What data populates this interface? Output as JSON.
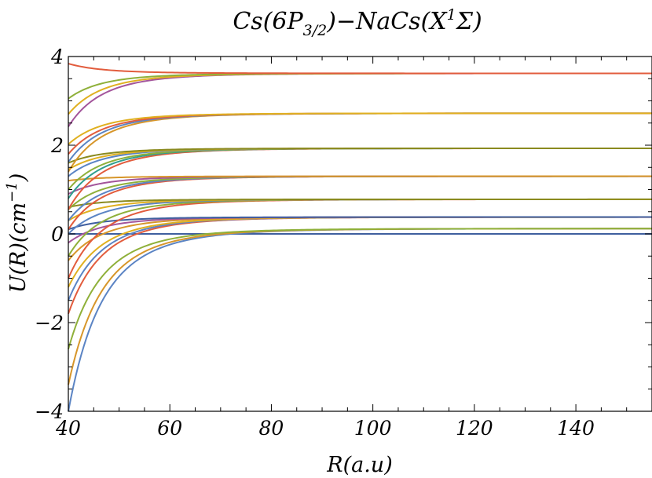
{
  "chart_data": {
    "type": "line",
    "title": "Cs(6P3/2)−NaCs(X1Σ)",
    "title_parts": {
      "a": "Cs(6",
      "b": "P",
      "c": "3/2",
      "d": ")−NaCs(",
      "e": "X",
      "f": "1",
      "g": "Σ)"
    },
    "xlabel": "R(a.u)",
    "ylabel": "U(R)(cm−1)",
    "ylabel_parts": {
      "a": "U(R)(cm",
      "b": "−1",
      "c": ")"
    },
    "xlim": [
      40,
      155
    ],
    "ylim": [
      -4,
      4
    ],
    "xticks": [
      40,
      60,
      80,
      100,
      120,
      140
    ],
    "xtick_labels": [
      "40",
      "60",
      "80",
      "100",
      "120",
      "140"
    ],
    "yticks": [
      -4,
      -2,
      0,
      2,
      4
    ],
    "ytick_labels": [
      "−4",
      "−2",
      "0",
      "2",
      "4"
    ],
    "grid": false,
    "legend": "none",
    "series": [
      {
        "color": "#3f5f9f",
        "asymptote": 0.0,
        "value_at_40": 0.0
      },
      {
        "color": "#5b84c4",
        "asymptote": 0.12,
        "value_at_40": -4.0
      },
      {
        "color": "#d7962a",
        "asymptote": 0.12,
        "value_at_40": -3.4
      },
      {
        "color": "#8fb03a",
        "asymptote": 0.12,
        "value_at_40": -2.6
      },
      {
        "color": "#e25c3d",
        "asymptote": 0.38,
        "value_at_40": -1.8
      },
      {
        "color": "#5b84c4",
        "asymptote": 0.38,
        "value_at_40": -1.5
      },
      {
        "color": "#e0b020",
        "asymptote": 0.38,
        "value_at_40": -1.2
      },
      {
        "color": "#d7962a",
        "asymptote": 0.38,
        "value_at_40": -0.6
      },
      {
        "color": "#a3559b",
        "asymptote": 0.38,
        "value_at_40": -0.2
      },
      {
        "color": "#3f5f9f",
        "asymptote": 0.38,
        "value_at_40": 0.1
      },
      {
        "color": "#e25c3d",
        "asymptote": 0.78,
        "value_at_40": -1.0
      },
      {
        "color": "#8fb03a",
        "asymptote": 0.78,
        "value_at_40": -0.5
      },
      {
        "color": "#5b84c4",
        "asymptote": 0.78,
        "value_at_40": 0.0
      },
      {
        "color": "#e0b020",
        "asymptote": 0.78,
        "value_at_40": 0.3
      },
      {
        "color": "#8a8a1f",
        "asymptote": 0.78,
        "value_at_40": 0.6
      },
      {
        "color": "#e25c3d",
        "asymptote": 1.3,
        "value_at_40": 0.1
      },
      {
        "color": "#5b84c4",
        "asymptote": 1.3,
        "value_at_40": 0.3
      },
      {
        "color": "#8fb03a",
        "asymptote": 1.3,
        "value_at_40": 0.55
      },
      {
        "color": "#a3559b",
        "asymptote": 1.3,
        "value_at_40": 0.9
      },
      {
        "color": "#d7962a",
        "asymptote": 1.3,
        "value_at_40": 1.2
      },
      {
        "color": "#e25c3d",
        "asymptote": 1.93,
        "value_at_40": 0.55
      },
      {
        "color": "#2f9e8e",
        "asymptote": 1.93,
        "value_at_40": 0.8
      },
      {
        "color": "#8fb03a",
        "asymptote": 1.93,
        "value_at_40": 1.0
      },
      {
        "color": "#5b84c4",
        "asymptote": 1.93,
        "value_at_40": 1.3
      },
      {
        "color": "#e0b020",
        "asymptote": 1.93,
        "value_at_40": 1.45
      },
      {
        "color": "#8a8a1f",
        "asymptote": 1.93,
        "value_at_40": 1.6
      },
      {
        "color": "#d7962a",
        "asymptote": 2.72,
        "value_at_40": 1.4
      },
      {
        "color": "#5b84c4",
        "asymptote": 2.72,
        "value_at_40": 1.62
      },
      {
        "color": "#e25c3d",
        "asymptote": 2.72,
        "value_at_40": 1.8
      },
      {
        "color": "#e0b020",
        "asymptote": 2.72,
        "value_at_40": 2.02
      },
      {
        "color": "#a3559b",
        "asymptote": 3.62,
        "value_at_40": 2.42
      },
      {
        "color": "#e0b020",
        "asymptote": 3.62,
        "value_at_40": 2.7
      },
      {
        "color": "#8fb03a",
        "asymptote": 3.62,
        "value_at_40": 3.05
      },
      {
        "color": "#e25c3d",
        "asymptote": 3.62,
        "value_at_40": 3.84
      }
    ]
  }
}
